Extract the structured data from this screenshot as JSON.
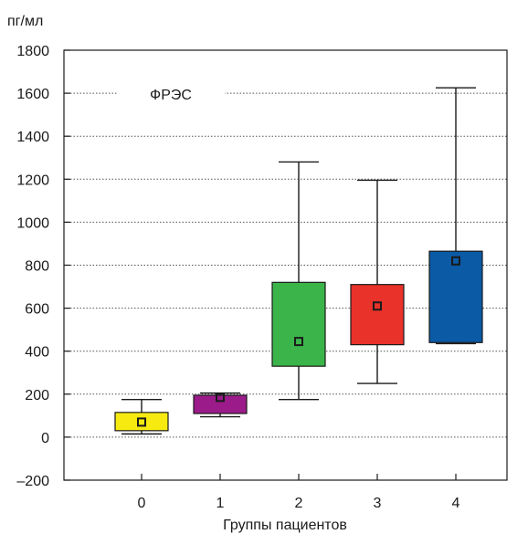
{
  "chart_data": {
    "type": "boxplot",
    "title": "",
    "ylabel": "пг/мл",
    "xlabel": "Группы пациентов",
    "annotation": "ФРЭС",
    "ylim": [
      -200,
      1800
    ],
    "yticks": [
      -200,
      0,
      200,
      400,
      600,
      800,
      1000,
      1200,
      1400,
      1600,
      1800
    ],
    "ytick_labels": [
      "–200",
      "0",
      "200",
      "400",
      "600",
      "800",
      "1000",
      "1200",
      "1400",
      "1600",
      "1800"
    ],
    "grid": "horizontal-dotted",
    "categories": [
      "0",
      "1",
      "2",
      "3",
      "4"
    ],
    "boxes": [
      {
        "category": "0",
        "whisker_low": 15,
        "q1": 30,
        "q3": 115,
        "whisker_high": 175,
        "mean": 70,
        "color": "#f7ea10"
      },
      {
        "category": "1",
        "whisker_low": 95,
        "q1": 110,
        "q3": 195,
        "whisker_high": 205,
        "mean": 185,
        "color": "#9c1b8a"
      },
      {
        "category": "2",
        "whisker_low": 175,
        "q1": 330,
        "q3": 720,
        "whisker_high": 1280,
        "mean": 445,
        "color": "#3bb54a"
      },
      {
        "category": "3",
        "whisker_low": 250,
        "q1": 430,
        "q3": 710,
        "whisker_high": 1195,
        "mean": 610,
        "color": "#e8322a"
      },
      {
        "category": "4",
        "whisker_low": 435,
        "q1": 440,
        "q3": 865,
        "whisker_high": 1625,
        "mean": 820,
        "color": "#0a5aa5"
      }
    ]
  }
}
